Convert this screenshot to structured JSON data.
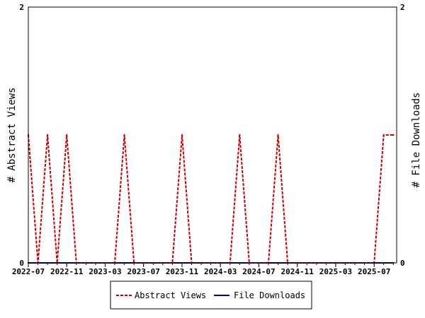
{
  "chart_data": {
    "type": "line",
    "title": "",
    "xlabel": "",
    "ylabel_left": "# Abstract Views",
    "ylabel_right": "# File Downloads",
    "ylim_left": [
      0,
      2
    ],
    "ylim_right": [
      0,
      2
    ],
    "y_ticks_left": [
      "0",
      "2"
    ],
    "y_ticks_right": [
      "0",
      "2"
    ],
    "x_tick_labels": [
      "2022-07",
      "2022-11",
      "2023-03",
      "2023-07",
      "2023-11",
      "2024-03",
      "2024-07",
      "2024-11",
      "2025-03",
      "2025-07"
    ],
    "grid": false,
    "legend_position": "bottom",
    "colors": {
      "abstract_views": "#cc0000",
      "file_downloads": "#00009c"
    },
    "series": [
      {
        "name": "Abstract Views",
        "axis": "left",
        "style": "dashed",
        "x": [
          "2022-07",
          "2022-08",
          "2022-09",
          "2022-10",
          "2022-11",
          "2022-12",
          "2023-01",
          "2023-02",
          "2023-03",
          "2023-04",
          "2023-05",
          "2023-06",
          "2023-07",
          "2023-08",
          "2023-09",
          "2023-10",
          "2023-11",
          "2023-12",
          "2024-01",
          "2024-02",
          "2024-03",
          "2024-04",
          "2024-05",
          "2024-06",
          "2024-07",
          "2024-08",
          "2024-09",
          "2024-10",
          "2024-11",
          "2024-12",
          "2025-01",
          "2025-02",
          "2025-03",
          "2025-04",
          "2025-05",
          "2025-06",
          "2025-07",
          "2025-08",
          "2025-09"
        ],
        "values": [
          1,
          0,
          1,
          0,
          1,
          0,
          0,
          0,
          0,
          0,
          1,
          0,
          0,
          0,
          0,
          0,
          1,
          0,
          0,
          0,
          0,
          0,
          1,
          0,
          0,
          0,
          1,
          0,
          0,
          0,
          0,
          0,
          0,
          0,
          0,
          0,
          0,
          1,
          1
        ]
      },
      {
        "name": "File Downloads",
        "axis": "right",
        "style": "solid",
        "x": [
          "2022-07",
          "2025-09"
        ],
        "values": [
          0,
          0
        ]
      }
    ]
  }
}
